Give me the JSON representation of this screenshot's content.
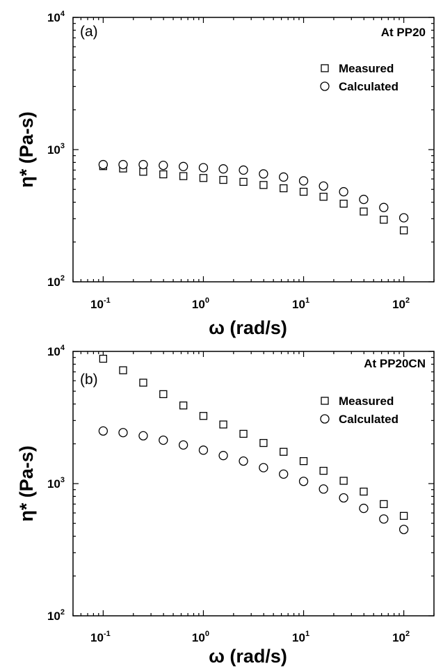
{
  "chart_data": [
    {
      "type": "scatter",
      "panel_label": "(a)",
      "title": "At PP20",
      "xlabel": "ω (rad/s)",
      "ylabel": "η* (Pa-s)",
      "xscale": "log",
      "yscale": "log",
      "xlim": [
        0.05,
        200
      ],
      "ylim": [
        100,
        10000
      ],
      "x_ticks": [
        {
          "base": "10",
          "exp": "-1"
        },
        {
          "base": "10",
          "exp": "0"
        },
        {
          "base": "10",
          "exp": "1"
        },
        {
          "base": "10",
          "exp": "2"
        }
      ],
      "y_ticks": [
        {
          "base": "10",
          "exp": "2"
        },
        {
          "base": "10",
          "exp": "3"
        },
        {
          "base": "10",
          "exp": "4"
        }
      ],
      "legend_position": "top-right",
      "grid": false,
      "x": [
        0.1,
        0.158,
        0.251,
        0.398,
        0.631,
        1.0,
        1.58,
        2.51,
        3.98,
        6.31,
        10.0,
        15.8,
        25.1,
        39.8,
        63.1,
        100.0
      ],
      "series": [
        {
          "name": "Measured",
          "marker": "square",
          "values": [
            750,
            720,
            680,
            650,
            630,
            610,
            590,
            570,
            540,
            510,
            480,
            440,
            390,
            340,
            295,
            245
          ]
        },
        {
          "name": "Calculated",
          "marker": "circle",
          "values": [
            770,
            770,
            770,
            760,
            745,
            730,
            715,
            700,
            655,
            620,
            580,
            530,
            480,
            420,
            365,
            305
          ]
        }
      ]
    },
    {
      "type": "scatter",
      "panel_label": "(b)",
      "title": "At PP20CN",
      "xlabel": "ω (rad/s)",
      "ylabel": "η* (Pa-s)",
      "xscale": "log",
      "yscale": "log",
      "xlim": [
        0.05,
        200
      ],
      "ylim": [
        100,
        10000
      ],
      "x_ticks": [
        {
          "base": "10",
          "exp": "-1"
        },
        {
          "base": "10",
          "exp": "0"
        },
        {
          "base": "10",
          "exp": "1"
        },
        {
          "base": "10",
          "exp": "2"
        }
      ],
      "y_ticks": [
        {
          "base": "10",
          "exp": "2"
        },
        {
          "base": "10",
          "exp": "3"
        },
        {
          "base": "10",
          "exp": "4"
        }
      ],
      "legend_position": "top-right",
      "grid": false,
      "x": [
        0.1,
        0.158,
        0.251,
        0.398,
        0.631,
        1.0,
        1.58,
        2.51,
        3.98,
        6.31,
        10.0,
        15.8,
        25.1,
        39.8,
        63.1,
        100.0
      ],
      "series": [
        {
          "name": "Measured",
          "marker": "square",
          "values": [
            8800,
            7200,
            5800,
            4750,
            3900,
            3250,
            2800,
            2380,
            2030,
            1740,
            1480,
            1250,
            1050,
            870,
            700,
            570
          ]
        },
        {
          "name": "Calculated",
          "marker": "circle",
          "values": [
            2500,
            2430,
            2300,
            2130,
            1960,
            1790,
            1630,
            1480,
            1320,
            1180,
            1040,
            910,
            780,
            650,
            540,
            450
          ]
        }
      ]
    }
  ]
}
